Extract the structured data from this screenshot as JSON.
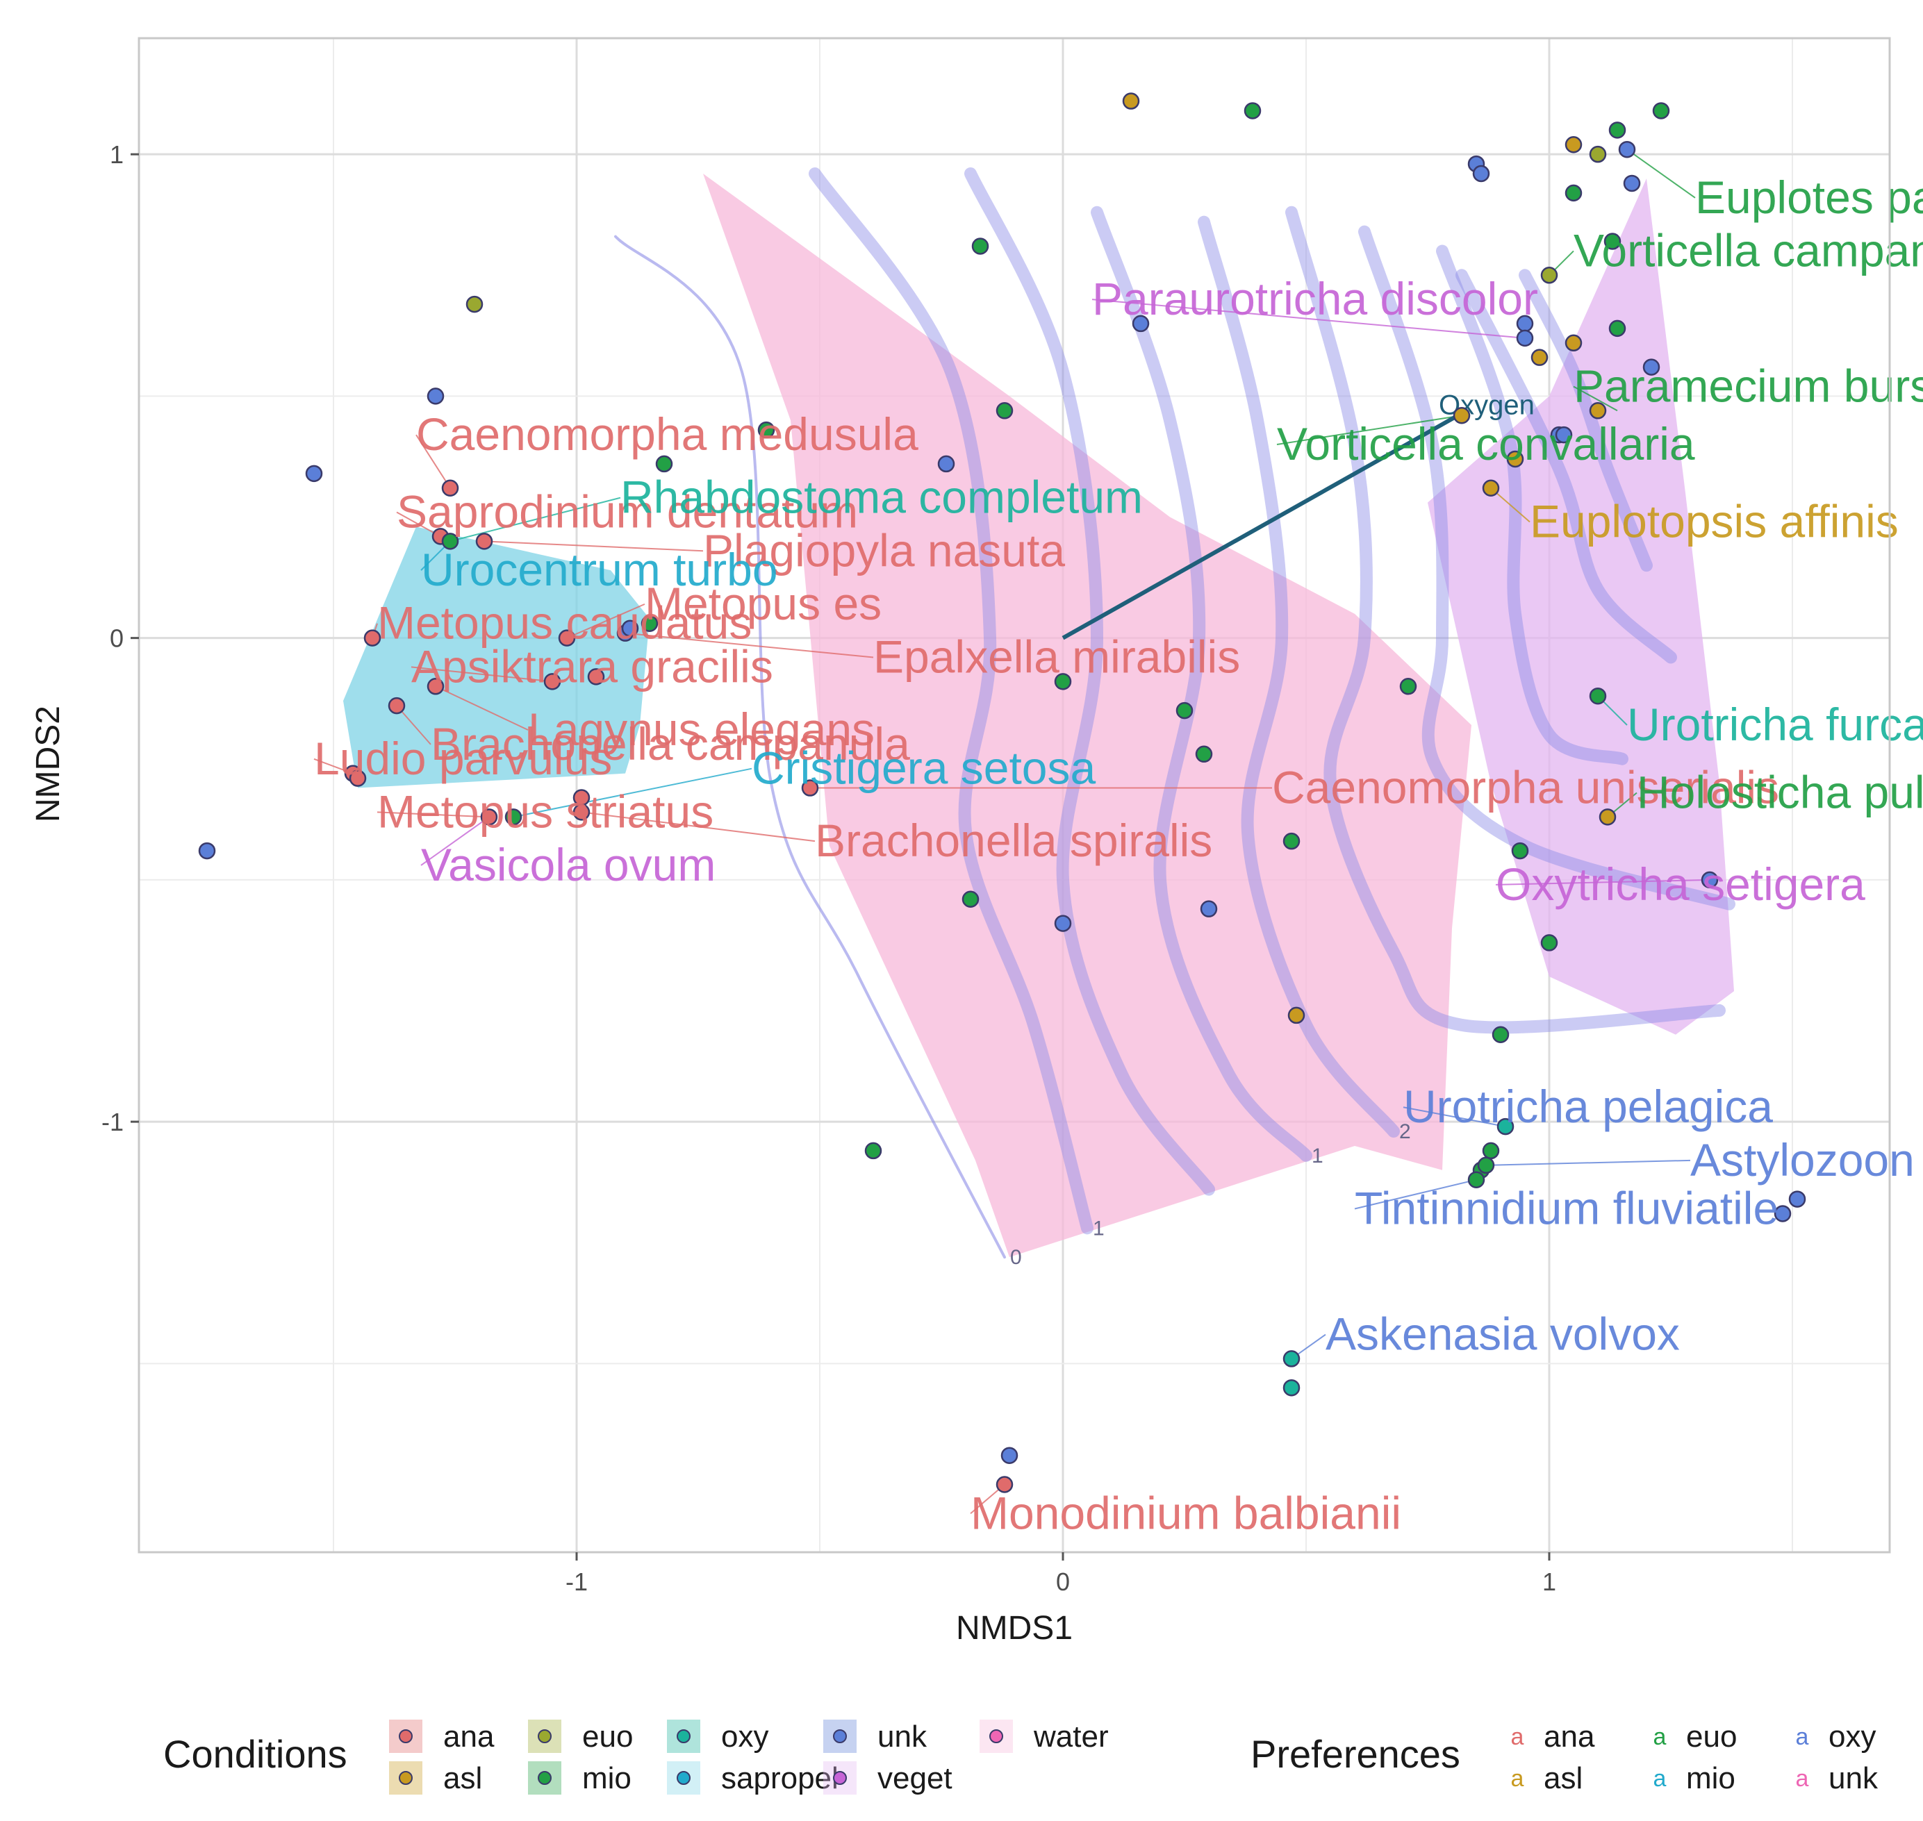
{
  "chart_data": {
    "type": "scatter",
    "subtype": "NMDS ordination with convex hulls, environmental vector and contour surface",
    "xlabel": "NMDS1",
    "ylabel": "NMDS2",
    "xlim": [
      -1.9,
      1.7
    ],
    "ylim": [
      -1.89,
      1.24
    ],
    "xticks": [
      -1,
      0,
      1
    ],
    "yticks": [
      -1,
      0,
      1
    ],
    "xtick_labels": [
      "-1",
      "0",
      "1"
    ],
    "ytick_labels": [
      "-1",
      "0",
      "1"
    ],
    "grid": true,
    "colors": {
      "ana": "#E06B6B",
      "asl": "#C89A20",
      "euo": "#9AA830",
      "mio": "#22A045",
      "oxy": "#1BB39C",
      "sapropel": "#22AACC",
      "unk": "#5B7FD8",
      "veget": "#C664D6",
      "water": "#EE66B4",
      "hull_sapropel": "#7FD3E6",
      "hull_water": "#F7B8DA",
      "hull_veget": "#E3B6F0",
      "contour": "#8C8CE6",
      "vector": "#1F5F7A",
      "point_edge": "#3A3A6A"
    },
    "points": [
      {
        "x": 0.14,
        "y": 1.11,
        "c": "asl"
      },
      {
        "x": 0.39,
        "y": 1.09,
        "c": "mio"
      },
      {
        "x": 1.05,
        "y": 1.02,
        "c": "asl"
      },
      {
        "x": 1.1,
        "y": 1.0,
        "c": "euo"
      },
      {
        "x": 1.14,
        "y": 1.05,
        "c": "mio"
      },
      {
        "x": 1.16,
        "y": 1.01,
        "c": "unk"
      },
      {
        "x": 1.23,
        "y": 1.09,
        "c": "mio"
      },
      {
        "x": 0.85,
        "y": 0.98,
        "c": "unk"
      },
      {
        "x": 0.86,
        "y": 0.96,
        "c": "unk"
      },
      {
        "x": 1.17,
        "y": 0.94,
        "c": "unk"
      },
      {
        "x": 1.05,
        "y": 0.92,
        "c": "mio"
      },
      {
        "x": 1.0,
        "y": 0.75,
        "c": "euo"
      },
      {
        "x": 1.13,
        "y": 0.82,
        "c": "mio"
      },
      {
        "x": -0.17,
        "y": 0.81,
        "c": "mio"
      },
      {
        "x": 0.16,
        "y": 0.65,
        "c": "unk"
      },
      {
        "x": 0.95,
        "y": 0.65,
        "c": "unk"
      },
      {
        "x": 0.95,
        "y": 0.62,
        "c": "unk"
      },
      {
        "x": 1.05,
        "y": 0.61,
        "c": "asl"
      },
      {
        "x": 1.14,
        "y": 0.64,
        "c": "mio"
      },
      {
        "x": 0.98,
        "y": 0.58,
        "c": "asl"
      },
      {
        "x": 1.21,
        "y": 0.56,
        "c": "unk"
      },
      {
        "x": 0.82,
        "y": 0.46,
        "c": "asl"
      },
      {
        "x": 1.1,
        "y": 0.47,
        "c": "asl"
      },
      {
        "x": 1.02,
        "y": 0.42,
        "c": "unk"
      },
      {
        "x": 1.03,
        "y": 0.42,
        "c": "unk"
      },
      {
        "x": 0.93,
        "y": 0.37,
        "c": "asl"
      },
      {
        "x": 0.88,
        "y": 0.31,
        "c": "asl"
      },
      {
        "x": -1.21,
        "y": 0.69,
        "c": "euo"
      },
      {
        "x": -1.29,
        "y": 0.5,
        "c": "unk"
      },
      {
        "x": -1.54,
        "y": 0.34,
        "c": "unk"
      },
      {
        "x": -1.26,
        "y": 0.31,
        "c": "ana"
      },
      {
        "x": -0.82,
        "y": 0.36,
        "c": "mio"
      },
      {
        "x": -0.61,
        "y": 0.43,
        "c": "mio"
      },
      {
        "x": -0.12,
        "y": 0.47,
        "c": "mio"
      },
      {
        "x": -0.24,
        "y": 0.36,
        "c": "unk"
      },
      {
        "x": -1.28,
        "y": 0.21,
        "c": "ana"
      },
      {
        "x": -1.26,
        "y": 0.2,
        "c": "mio"
      },
      {
        "x": -1.19,
        "y": 0.2,
        "c": "ana"
      },
      {
        "x": -1.42,
        "y": 0.0,
        "c": "ana"
      },
      {
        "x": -1.02,
        "y": 0.0,
        "c": "ana"
      },
      {
        "x": -0.9,
        "y": 0.01,
        "c": "unk"
      },
      {
        "x": -0.89,
        "y": 0.02,
        "c": "unk"
      },
      {
        "x": -0.85,
        "y": 0.03,
        "c": "mio"
      },
      {
        "x": -1.05,
        "y": -0.09,
        "c": "ana"
      },
      {
        "x": -0.96,
        "y": -0.08,
        "c": "ana"
      },
      {
        "x": -1.29,
        "y": -0.1,
        "c": "ana"
      },
      {
        "x": -1.37,
        "y": -0.14,
        "c": "ana"
      },
      {
        "x": -1.46,
        "y": -0.28,
        "c": "ana"
      },
      {
        "x": -1.45,
        "y": -0.29,
        "c": "ana"
      },
      {
        "x": -1.18,
        "y": -0.37,
        "c": "ana"
      },
      {
        "x": -1.13,
        "y": -0.37,
        "c": "mio"
      },
      {
        "x": -0.99,
        "y": -0.33,
        "c": "ana"
      },
      {
        "x": -0.99,
        "y": -0.36,
        "c": "ana"
      },
      {
        "x": -0.52,
        "y": -0.31,
        "c": "ana"
      },
      {
        "x": -1.76,
        "y": -0.44,
        "c": "unk"
      },
      {
        "x": 0.0,
        "y": -0.09,
        "c": "mio"
      },
      {
        "x": 0.25,
        "y": -0.15,
        "c": "mio"
      },
      {
        "x": 0.29,
        "y": -0.24,
        "c": "mio"
      },
      {
        "x": 0.71,
        "y": -0.1,
        "c": "mio"
      },
      {
        "x": 1.1,
        "y": -0.12,
        "c": "mio"
      },
      {
        "x": 1.12,
        "y": -0.37,
        "c": "asl"
      },
      {
        "x": 0.47,
        "y": -0.42,
        "c": "mio"
      },
      {
        "x": 0.94,
        "y": -0.44,
        "c": "mio"
      },
      {
        "x": -0.19,
        "y": -0.54,
        "c": "mio"
      },
      {
        "x": 0.0,
        "y": -0.59,
        "c": "unk"
      },
      {
        "x": 0.3,
        "y": -0.56,
        "c": "unk"
      },
      {
        "x": 1.33,
        "y": -0.5,
        "c": "unk"
      },
      {
        "x": 1.0,
        "y": -0.63,
        "c": "mio"
      },
      {
        "x": 0.48,
        "y": -0.78,
        "c": "asl"
      },
      {
        "x": 0.9,
        "y": -0.82,
        "c": "mio"
      },
      {
        "x": -0.39,
        "y": -1.06,
        "c": "mio"
      },
      {
        "x": 0.91,
        "y": -1.01,
        "c": "oxy"
      },
      {
        "x": 0.88,
        "y": -1.06,
        "c": "mio"
      },
      {
        "x": 0.86,
        "y": -1.1,
        "c": "mio"
      },
      {
        "x": 0.87,
        "y": -1.09,
        "c": "mio"
      },
      {
        "x": 0.85,
        "y": -1.12,
        "c": "mio"
      },
      {
        "x": 1.51,
        "y": -1.16,
        "c": "unk"
      },
      {
        "x": 1.48,
        "y": -1.19,
        "c": "unk"
      },
      {
        "x": 0.47,
        "y": -1.49,
        "c": "oxy"
      },
      {
        "x": 0.47,
        "y": -1.55,
        "c": "oxy"
      },
      {
        "x": -0.11,
        "y": -1.69,
        "c": "unk"
      },
      {
        "x": -0.12,
        "y": -1.75,
        "c": "ana"
      }
    ],
    "hulls": [
      {
        "group": "sapropel",
        "points": [
          [
            -1.33,
            0.23
          ],
          [
            -0.93,
            0.14
          ],
          [
            -0.85,
            0.04
          ],
          [
            -0.87,
            -0.18
          ],
          [
            -0.9,
            -0.28
          ],
          [
            -1.45,
            -0.31
          ],
          [
            -1.48,
            -0.13
          ]
        ]
      },
      {
        "group": "water",
        "points": [
          [
            -0.74,
            0.96
          ],
          [
            -0.11,
            0.5
          ],
          [
            0.22,
            0.25
          ],
          [
            0.6,
            0.05
          ],
          [
            0.84,
            -0.18
          ],
          [
            0.8,
            -0.6
          ],
          [
            0.78,
            -1.1
          ],
          [
            0.6,
            -1.05
          ],
          [
            -0.11,
            -1.28
          ],
          [
            -0.18,
            -1.08
          ],
          [
            -0.48,
            -0.43
          ],
          [
            -0.56,
            0.45
          ]
        ]
      },
      {
        "group": "veget",
        "points": [
          [
            0.75,
            0.28
          ],
          [
            1.0,
            0.5
          ],
          [
            1.2,
            0.95
          ],
          [
            1.28,
            0.3
          ],
          [
            1.35,
            -0.3
          ],
          [
            1.38,
            -0.73
          ],
          [
            1.26,
            -0.82
          ],
          [
            1.0,
            -0.7
          ],
          [
            0.88,
            -0.3
          ]
        ]
      }
    ],
    "contours": [
      {
        "label": "0",
        "pts": [
          [
            -0.92,
            0.83
          ],
          [
            -0.66,
            0.55
          ],
          [
            -0.6,
            -0.3
          ],
          [
            -0.42,
            -0.7
          ],
          [
            -0.12,
            -1.28
          ]
        ]
      },
      {
        "label": "1",
        "pts": [
          [
            -0.51,
            0.96
          ],
          [
            -0.23,
            0.55
          ],
          [
            -0.15,
            0.0
          ],
          [
            -0.2,
            -0.4
          ],
          [
            -0.06,
            -0.8
          ],
          [
            0.05,
            -1.22
          ]
        ]
      },
      {
        "label": "",
        "pts": [
          [
            -0.19,
            0.96
          ],
          [
            0.0,
            0.55
          ],
          [
            0.07,
            0.0
          ],
          [
            0.0,
            -0.5
          ],
          [
            0.12,
            -0.9
          ],
          [
            0.3,
            -1.14
          ]
        ]
      },
      {
        "label": "1",
        "pts": [
          [
            0.07,
            0.88
          ],
          [
            0.22,
            0.45
          ],
          [
            0.28,
            0.0
          ],
          [
            0.2,
            -0.5
          ],
          [
            0.34,
            -0.9
          ],
          [
            0.5,
            -1.07
          ]
        ]
      },
      {
        "label": "2",
        "pts": [
          [
            0.29,
            0.86
          ],
          [
            0.4,
            0.45
          ],
          [
            0.45,
            0.0
          ],
          [
            0.38,
            -0.4
          ],
          [
            0.5,
            -0.8
          ],
          [
            0.68,
            -1.02
          ]
        ]
      },
      {
        "label": "",
        "pts": [
          [
            0.47,
            0.88
          ],
          [
            0.6,
            0.4
          ],
          [
            0.62,
            0.0
          ],
          [
            0.55,
            -0.3
          ],
          [
            0.68,
            -0.65
          ],
          [
            0.82,
            -0.8
          ],
          [
            1.35,
            -0.77
          ]
        ]
      },
      {
        "label": "",
        "pts": [
          [
            0.62,
            0.84
          ],
          [
            0.76,
            0.4
          ],
          [
            0.78,
            0.0
          ],
          [
            0.76,
            -0.25
          ],
          [
            0.95,
            -0.43
          ],
          [
            1.37,
            -0.55
          ]
        ]
      },
      {
        "label": "",
        "pts": [
          [
            0.78,
            0.8
          ],
          [
            0.92,
            0.4
          ],
          [
            0.93,
            0.05
          ],
          [
            1.0,
            -0.2
          ],
          [
            1.15,
            -0.25
          ]
        ]
      },
      {
        "label": "",
        "pts": [
          [
            0.82,
            0.75
          ],
          [
            1.02,
            0.35
          ],
          [
            1.1,
            0.1
          ],
          [
            1.25,
            -0.04
          ]
        ]
      },
      {
        "label": "",
        "pts": [
          [
            0.95,
            0.75
          ],
          [
            1.05,
            0.55
          ],
          [
            1.12,
            0.35
          ],
          [
            1.2,
            0.15
          ]
        ]
      }
    ],
    "vector": {
      "name": "Oxygen",
      "from": [
        0,
        0
      ],
      "to": [
        0.83,
        0.47
      ]
    },
    "species_labels": [
      {
        "text": "Euplotes patella",
        "x": 1.3,
        "y": 0.91,
        "c": "mio",
        "ax": 1.16,
        "ay": 1.01
      },
      {
        "text": "Vorticella campanula",
        "x": 1.05,
        "y": 0.8,
        "c": "mio",
        "ax": 1.0,
        "ay": 0.75
      },
      {
        "text": "Paraurotricha discolor",
        "x": 0.06,
        "y": 0.7,
        "c": "veget",
        "ax": 0.95,
        "ay": 0.62
      },
      {
        "text": "Paramecium bursaria",
        "x": 1.05,
        "y": 0.52,
        "c": "mio",
        "ax": 1.14,
        "ay": 0.47
      },
      {
        "text": "Vorticella convallaria",
        "x": 0.44,
        "y": 0.4,
        "c": "mio",
        "ax": 0.82,
        "ay": 0.46
      },
      {
        "text": "Euplotopsis affinis",
        "x": 0.96,
        "y": 0.24,
        "c": "asl",
        "ax": 0.88,
        "ay": 0.31
      },
      {
        "text": "Caenomorpha medusula",
        "x": -1.33,
        "y": 0.42,
        "c": "ana",
        "ax": -1.26,
        "ay": 0.31
      },
      {
        "text": "Saprodinium dentatum",
        "x": -1.37,
        "y": 0.26,
        "c": "ana",
        "ax": -1.28,
        "ay": 0.21
      },
      {
        "text": "Rhabdostoma completum",
        "x": -0.91,
        "y": 0.29,
        "c": "oxy",
        "ax": -1.26,
        "ay": 0.2
      },
      {
        "text": "Plagiopyla nasuta",
        "x": -0.74,
        "y": 0.18,
        "c": "ana",
        "ax": -1.19,
        "ay": 0.2
      },
      {
        "text": "Urocentrum turbo",
        "x": -1.32,
        "y": 0.14,
        "c": "sapropel",
        "ax": -1.26,
        "ay": 0.2
      },
      {
        "text": "Metopus es",
        "x": -0.86,
        "y": 0.07,
        "c": "ana",
        "ax": -1.02,
        "ay": 0.0
      },
      {
        "text": "Metopus caudatus",
        "x": -1.41,
        "y": 0.03,
        "c": "ana",
        "ax": -1.42,
        "ay": 0.0
      },
      {
        "text": "Apsiktrara gracilis",
        "x": -1.34,
        "y": -0.06,
        "c": "ana",
        "ax": -1.05,
        "ay": -0.09
      },
      {
        "text": "Epalxella mirabilis",
        "x": -0.39,
        "y": -0.04,
        "c": "ana",
        "ax": -0.9,
        "ay": 0.01
      },
      {
        "text": "Lagynus elegans",
        "x": -1.1,
        "y": -0.19,
        "c": "ana",
        "ax": -1.29,
        "ay": -0.1
      },
      {
        "text": "Brachonella campanula",
        "x": -1.3,
        "y": -0.22,
        "c": "ana",
        "ax": -1.37,
        "ay": -0.14
      },
      {
        "text": "Ludio parvulus",
        "x": -1.54,
        "y": -0.25,
        "c": "ana",
        "ax": -1.46,
        "ay": -0.28
      },
      {
        "text": "Cristigera setosa",
        "x": -0.64,
        "y": -0.27,
        "c": "sapropel",
        "ax": -1.13,
        "ay": -0.37
      },
      {
        "text": "Caenomorpha uniserialis",
        "x": 0.43,
        "y": -0.31,
        "c": "ana",
        "ax": -0.52,
        "ay": -0.31
      },
      {
        "text": "Metopus striatus",
        "x": -1.41,
        "y": -0.36,
        "c": "ana",
        "ax": -1.18,
        "ay": -0.37
      },
      {
        "text": "Brachonella spiralis",
        "x": -0.51,
        "y": -0.42,
        "c": "ana",
        "ax": -0.99,
        "ay": -0.36
      },
      {
        "text": "Vasicola ovum",
        "x": -1.32,
        "y": -0.47,
        "c": "veget",
        "ax": -1.18,
        "ay": -0.37
      },
      {
        "text": "Urotricha furcata",
        "x": 1.16,
        "y": -0.18,
        "c": "oxy",
        "ax": 1.1,
        "ay": -0.12
      },
      {
        "text": "Holosticha pullaster",
        "x": 1.18,
        "y": -0.32,
        "c": "mio",
        "ax": 1.12,
        "ay": -0.37
      },
      {
        "text": "Oxytricha setigera",
        "x": 0.89,
        "y": -0.51,
        "c": "veget",
        "ax": 1.33,
        "ay": -0.5
      },
      {
        "text": "Urotricha pelagica",
        "x": 0.7,
        "y": -0.97,
        "c": "unk",
        "ax": 0.91,
        "ay": -1.01
      },
      {
        "text": "Astylozoon faurei",
        "x": 1.29,
        "y": -1.08,
        "c": "unk",
        "ax": 0.87,
        "ay": -1.09
      },
      {
        "text": "Tintinnidium fluviatile",
        "x": 0.6,
        "y": -1.18,
        "c": "unk",
        "ax": 0.85,
        "ay": -1.12
      },
      {
        "text": "Askenasia volvox",
        "x": 0.54,
        "y": -1.44,
        "c": "unk",
        "ax": 0.47,
        "ay": -1.49
      },
      {
        "text": "Monodinium balbianii",
        "x": -0.19,
        "y": -1.81,
        "c": "ana",
        "ax": -0.12,
        "ay": -1.75
      }
    ],
    "legend": {
      "position": "bottom",
      "conditions": {
        "title": "Conditions",
        "items": [
          {
            "key": "ana",
            "label": "ana"
          },
          {
            "key": "asl",
            "label": "asl"
          },
          {
            "key": "euo",
            "label": "euo"
          },
          {
            "key": "mio",
            "label": "mio"
          },
          {
            "key": "oxy",
            "label": "oxy"
          },
          {
            "key": "sapropel",
            "label": "sapropel"
          },
          {
            "key": "unk",
            "label": "unk"
          },
          {
            "key": "veget",
            "label": "veget"
          },
          {
            "key": "water",
            "label": "water"
          }
        ]
      },
      "preferences": {
        "title": "Preferences",
        "items": [
          {
            "key": "ana",
            "label": "ana"
          },
          {
            "key": "asl",
            "label": "asl"
          },
          {
            "key": "mio",
            "label": "euo"
          },
          {
            "key": "sapropel",
            "label": "mio"
          },
          {
            "key": "unk",
            "label": "oxy"
          },
          {
            "key": "water",
            "label": "unk"
          }
        ]
      }
    }
  }
}
